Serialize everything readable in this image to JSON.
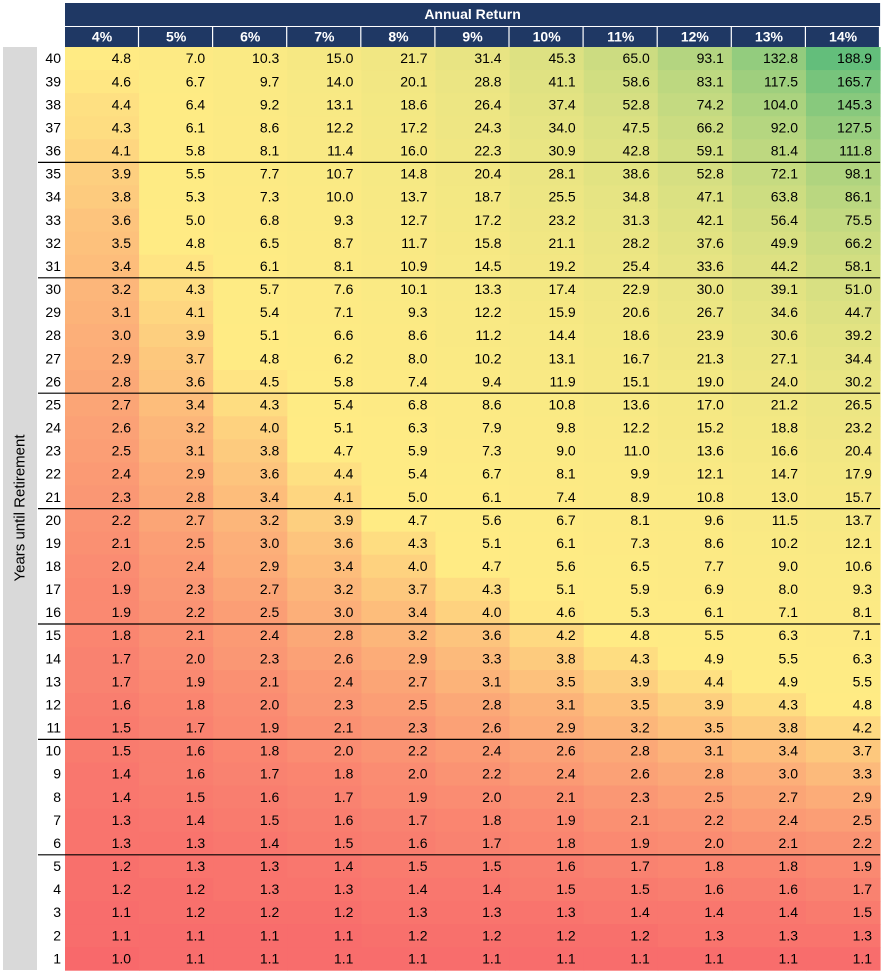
{
  "chart_data": {
    "type": "heatmap",
    "title": "",
    "column_header": "Annual Return",
    "row_header": "Years until Retirement",
    "x": [
      "4%",
      "5%",
      "6%",
      "7%",
      "8%",
      "9%",
      "10%",
      "11%",
      "12%",
      "13%",
      "14%"
    ],
    "y": [
      40,
      39,
      38,
      37,
      36,
      35,
      34,
      33,
      32,
      31,
      30,
      29,
      28,
      27,
      26,
      25,
      24,
      23,
      22,
      21,
      20,
      19,
      18,
      17,
      16,
      15,
      14,
      13,
      12,
      11,
      10,
      9,
      8,
      7,
      6,
      5,
      4,
      3,
      2,
      1
    ],
    "values": [
      [
        "4.8",
        "7.0",
        "10.3",
        "15.0",
        "21.7",
        "31.4",
        "45.3",
        "65.0",
        "93.1",
        "132.8",
        "188.9"
      ],
      [
        "4.6",
        "6.7",
        "9.7",
        "14.0",
        "20.1",
        "28.8",
        "41.1",
        "58.6",
        "83.1",
        "117.5",
        "165.7"
      ],
      [
        "4.4",
        "6.4",
        "9.2",
        "13.1",
        "18.6",
        "26.4",
        "37.4",
        "52.8",
        "74.2",
        "104.0",
        "145.3"
      ],
      [
        "4.3",
        "6.1",
        "8.6",
        "12.2",
        "17.2",
        "24.3",
        "34.0",
        "47.5",
        "66.2",
        "92.0",
        "127.5"
      ],
      [
        "4.1",
        "5.8",
        "8.1",
        "11.4",
        "16.0",
        "22.3",
        "30.9",
        "42.8",
        "59.1",
        "81.4",
        "111.8"
      ],
      [
        "3.9",
        "5.5",
        "7.7",
        "10.7",
        "14.8",
        "20.4",
        "28.1",
        "38.6",
        "52.8",
        "72.1",
        "98.1"
      ],
      [
        "3.8",
        "5.3",
        "7.3",
        "10.0",
        "13.7",
        "18.7",
        "25.5",
        "34.8",
        "47.1",
        "63.8",
        "86.1"
      ],
      [
        "3.6",
        "5.0",
        "6.8",
        "9.3",
        "12.7",
        "17.2",
        "23.2",
        "31.3",
        "42.1",
        "56.4",
        "75.5"
      ],
      [
        "3.5",
        "4.8",
        "6.5",
        "8.7",
        "11.7",
        "15.8",
        "21.1",
        "28.2",
        "37.6",
        "49.9",
        "66.2"
      ],
      [
        "3.4",
        "4.5",
        "6.1",
        "8.1",
        "10.9",
        "14.5",
        "19.2",
        "25.4",
        "33.6",
        "44.2",
        "58.1"
      ],
      [
        "3.2",
        "4.3",
        "5.7",
        "7.6",
        "10.1",
        "13.3",
        "17.4",
        "22.9",
        "30.0",
        "39.1",
        "51.0"
      ],
      [
        "3.1",
        "4.1",
        "5.4",
        "7.1",
        "9.3",
        "12.2",
        "15.9",
        "20.6",
        "26.7",
        "34.6",
        "44.7"
      ],
      [
        "3.0",
        "3.9",
        "5.1",
        "6.6",
        "8.6",
        "11.2",
        "14.4",
        "18.6",
        "23.9",
        "30.6",
        "39.2"
      ],
      [
        "2.9",
        "3.7",
        "4.8",
        "6.2",
        "8.0",
        "10.2",
        "13.1",
        "16.7",
        "21.3",
        "27.1",
        "34.4"
      ],
      [
        "2.8",
        "3.6",
        "4.5",
        "5.8",
        "7.4",
        "9.4",
        "11.9",
        "15.1",
        "19.0",
        "24.0",
        "30.2"
      ],
      [
        "2.7",
        "3.4",
        "4.3",
        "5.4",
        "6.8",
        "8.6",
        "10.8",
        "13.6",
        "17.0",
        "21.2",
        "26.5"
      ],
      [
        "2.6",
        "3.2",
        "4.0",
        "5.1",
        "6.3",
        "7.9",
        "9.8",
        "12.2",
        "15.2",
        "18.8",
        "23.2"
      ],
      [
        "2.5",
        "3.1",
        "3.8",
        "4.7",
        "5.9",
        "7.3",
        "9.0",
        "11.0",
        "13.6",
        "16.6",
        "20.4"
      ],
      [
        "2.4",
        "2.9",
        "3.6",
        "4.4",
        "5.4",
        "6.7",
        "8.1",
        "9.9",
        "12.1",
        "14.7",
        "17.9"
      ],
      [
        "2.3",
        "2.8",
        "3.4",
        "4.1",
        "5.0",
        "6.1",
        "7.4",
        "8.9",
        "10.8",
        "13.0",
        "15.7"
      ],
      [
        "2.2",
        "2.7",
        "3.2",
        "3.9",
        "4.7",
        "5.6",
        "6.7",
        "8.1",
        "9.6",
        "11.5",
        "13.7"
      ],
      [
        "2.1",
        "2.5",
        "3.0",
        "3.6",
        "4.3",
        "5.1",
        "6.1",
        "7.3",
        "8.6",
        "10.2",
        "12.1"
      ],
      [
        "2.0",
        "2.4",
        "2.9",
        "3.4",
        "4.0",
        "4.7",
        "5.6",
        "6.5",
        "7.7",
        "9.0",
        "10.6"
      ],
      [
        "1.9",
        "2.3",
        "2.7",
        "3.2",
        "3.7",
        "4.3",
        "5.1",
        "5.9",
        "6.9",
        "8.0",
        "9.3"
      ],
      [
        "1.9",
        "2.2",
        "2.5",
        "3.0",
        "3.4",
        "4.0",
        "4.6",
        "5.3",
        "6.1",
        "7.1",
        "8.1"
      ],
      [
        "1.8",
        "2.1",
        "2.4",
        "2.8",
        "3.2",
        "3.6",
        "4.2",
        "4.8",
        "5.5",
        "6.3",
        "7.1"
      ],
      [
        "1.7",
        "2.0",
        "2.3",
        "2.6",
        "2.9",
        "3.3",
        "3.8",
        "4.3",
        "4.9",
        "5.5",
        "6.3"
      ],
      [
        "1.7",
        "1.9",
        "2.1",
        "2.4",
        "2.7",
        "3.1",
        "3.5",
        "3.9",
        "4.4",
        "4.9",
        "5.5"
      ],
      [
        "1.6",
        "1.8",
        "2.0",
        "2.3",
        "2.5",
        "2.8",
        "3.1",
        "3.5",
        "3.9",
        "4.3",
        "4.8"
      ],
      [
        "1.5",
        "1.7",
        "1.9",
        "2.1",
        "2.3",
        "2.6",
        "2.9",
        "3.2",
        "3.5",
        "3.8",
        "4.2"
      ],
      [
        "1.5",
        "1.6",
        "1.8",
        "2.0",
        "2.2",
        "2.4",
        "2.6",
        "2.8",
        "3.1",
        "3.4",
        "3.7"
      ],
      [
        "1.4",
        "1.6",
        "1.7",
        "1.8",
        "2.0",
        "2.2",
        "2.4",
        "2.6",
        "2.8",
        "3.0",
        "3.3"
      ],
      [
        "1.4",
        "1.5",
        "1.6",
        "1.7",
        "1.9",
        "2.0",
        "2.1",
        "2.3",
        "2.5",
        "2.7",
        "2.9"
      ],
      [
        "1.3",
        "1.4",
        "1.5",
        "1.6",
        "1.7",
        "1.8",
        "1.9",
        "2.1",
        "2.2",
        "2.4",
        "2.5"
      ],
      [
        "1.3",
        "1.3",
        "1.4",
        "1.5",
        "1.6",
        "1.7",
        "1.8",
        "1.9",
        "2.0",
        "2.1",
        "2.2"
      ],
      [
        "1.2",
        "1.3",
        "1.3",
        "1.4",
        "1.5",
        "1.5",
        "1.6",
        "1.7",
        "1.8",
        "1.8",
        "1.9"
      ],
      [
        "1.2",
        "1.2",
        "1.3",
        "1.3",
        "1.4",
        "1.4",
        "1.5",
        "1.5",
        "1.6",
        "1.6",
        "1.7"
      ],
      [
        "1.1",
        "1.2",
        "1.2",
        "1.2",
        "1.3",
        "1.3",
        "1.3",
        "1.4",
        "1.4",
        "1.4",
        "1.5"
      ],
      [
        "1.1",
        "1.1",
        "1.1",
        "1.1",
        "1.2",
        "1.2",
        "1.2",
        "1.2",
        "1.3",
        "1.3",
        "1.3"
      ],
      [
        "1.0",
        "1.1",
        "1.1",
        "1.1",
        "1.1",
        "1.1",
        "1.1",
        "1.1",
        "1.1",
        "1.1",
        "1.1"
      ]
    ],
    "color_scale": {
      "low": "#f8696b",
      "mid": "#ffeb84",
      "high": "#63be7b",
      "midpoint": "50th percentile"
    },
    "header_color": "#1f3864",
    "header_text_color": "#ffffff",
    "row_label_background": "#d9d9d9",
    "group_divider_every_rows": 5,
    "legend": "none",
    "grid": false
  }
}
